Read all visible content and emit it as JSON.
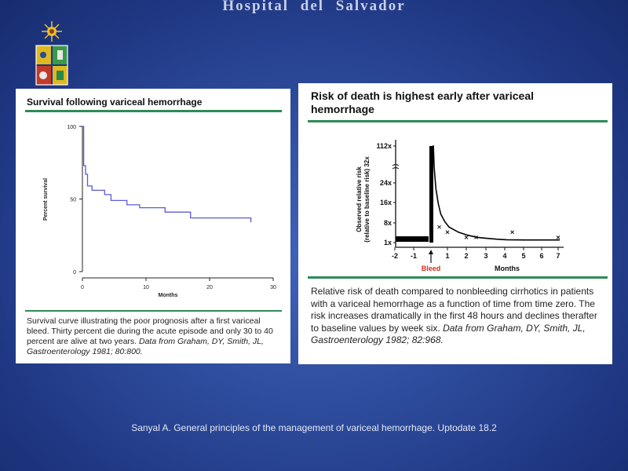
{
  "header": {
    "title": "Hospital del Salvador"
  },
  "left_panel": {
    "title": "Survival following variceal hemorrhage",
    "caption_main": "Survival curve illustrating the poor prognosis after a first variceal bleed. Thirty percent die during the acute episode and only 30 to 40 percent are alive at two years. ",
    "caption_source": "Data from Graham, DY, Smith, JL, Gastroenterology 1981; 80:800."
  },
  "right_panel": {
    "title": "Risk of death is highest early after variceal hemorrhage",
    "caption_main": "Relative risk of death compared to nonbleeding cirrhotics in patients with a variceal hemorrhage as a function of time from time zero. The risk increases dramatically in the first 48 hours and declines therafter to baseline values by week six. ",
    "caption_source": "Data from Graham, DY, Smith, JL, Gastroenterology 1982; 82:968."
  },
  "chart_data": [
    {
      "type": "line",
      "title": "Survival following variceal hemorrhage",
      "xlabel": "Months",
      "ylabel": "Percent survival",
      "xlim": [
        0,
        30
      ],
      "ylim": [
        0,
        100
      ],
      "xticks": [
        "0",
        "10",
        "20",
        "30"
      ],
      "yticks": [
        "0",
        "50",
        "100"
      ],
      "grid": false,
      "color": "#5b5bd6",
      "series": [
        {
          "x": [
            0,
            0.2,
            0.2,
            0.5,
            0.5,
            0.8,
            0.8,
            1.5,
            1.5,
            3.5,
            3.5,
            4.5,
            4.5,
            7,
            7,
            9,
            9,
            13,
            13,
            17,
            17,
            26.5,
            26.5
          ],
          "y": [
            100,
            100,
            73,
            73,
            67,
            67,
            59,
            59,
            56,
            56,
            53,
            53,
            49,
            49,
            46,
            46,
            44,
            44,
            41,
            41,
            37,
            37,
            34
          ]
        }
      ]
    },
    {
      "type": "line",
      "title": "Risk of death is highest early after variceal hemorrhage",
      "xlabel": "Months",
      "ylabel": "Observed relative risk (relative to baseline risk) 32x",
      "xticks": [
        "-2",
        "-1",
        "1",
        "2",
        "3",
        "4",
        "5",
        "6",
        "7"
      ],
      "yticks": [
        "1x",
        "8x",
        "16x",
        "24x",
        "112x"
      ],
      "annotation": "Bleed",
      "bleed_at_month": 0,
      "baseline_before_bleed": "1x",
      "curve": {
        "months": [
          0,
          0.05,
          0.1,
          0.2,
          0.35,
          0.5,
          0.75,
          1,
          1.5,
          2,
          2.5,
          3,
          3.5,
          4,
          5,
          6,
          7
        ],
        "relative_risk": [
          112,
          40,
          30,
          22,
          16,
          12,
          9,
          7,
          5,
          3.8,
          3,
          2.6,
          2.3,
          2.1,
          2,
          2,
          2
        ]
      },
      "markers": {
        "months": [
          0.5,
          1,
          2,
          2.5,
          4.4,
          7
        ],
        "relative_risk": [
          7,
          5,
          3,
          3,
          5,
          3
        ]
      }
    }
  ],
  "footer": {
    "citation": "Sanyal A. General principles of the management of variceal hemorrhage. Uptodate 18.2"
  }
}
